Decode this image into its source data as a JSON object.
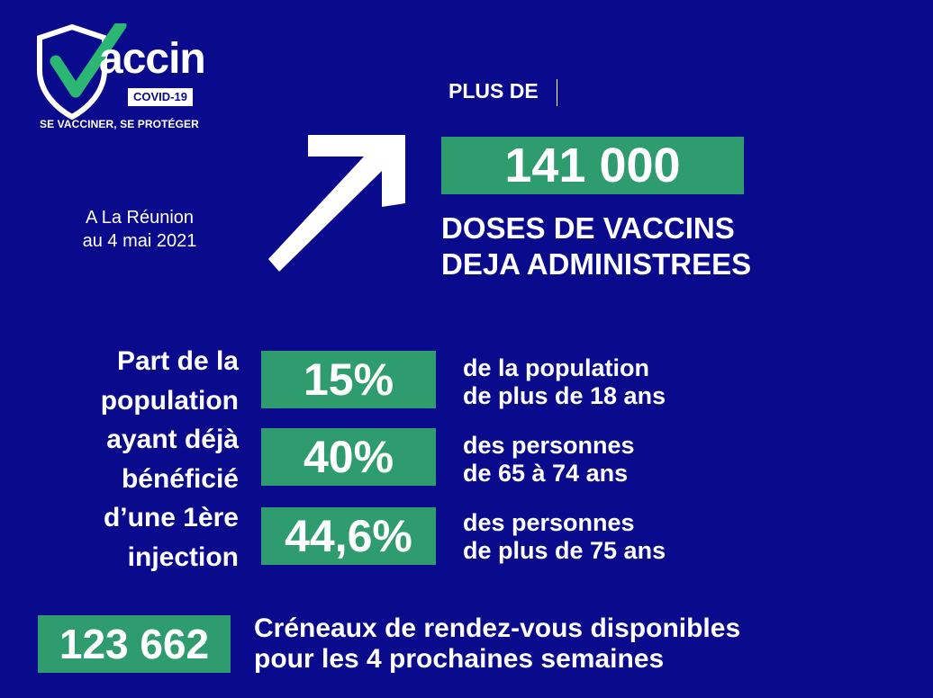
{
  "logo": {
    "brand": "accin",
    "badge": "COVID-19",
    "tagline": "SE VACCINER, SE PROTÉGER",
    "icon": "shield-check-icon"
  },
  "location": {
    "line1": "A La Réunion",
    "line2": "au 4 mai 2021"
  },
  "headline": {
    "prefix": "PLUS DE",
    "value": "141 000",
    "line1": "DOSES DE VACCINS",
    "line2": "DEJA ADMINISTREES"
  },
  "share": {
    "label_lines": [
      "Part de la",
      "population",
      "ayant déjà",
      "bénéficié",
      "d’une 1ère",
      "injection"
    ],
    "rows": [
      {
        "value": "15%",
        "line1": "de la population",
        "line2": "de plus de 18 ans"
      },
      {
        "value": "40%",
        "line1": "des personnes",
        "line2": "de 65 à 74 ans"
      },
      {
        "value": "44,6%",
        "line1": "des personnes",
        "line2": "de plus de 75 ans"
      }
    ]
  },
  "slots": {
    "value": "123 662",
    "line1": "Créneaux de rendez-vous disponibles",
    "line2": "pour les 4 prochaines semaines"
  },
  "colors": {
    "background": "#0a0a8c",
    "accent": "#2e9c6f",
    "check": "#2bb673",
    "text": "#ffffff"
  }
}
